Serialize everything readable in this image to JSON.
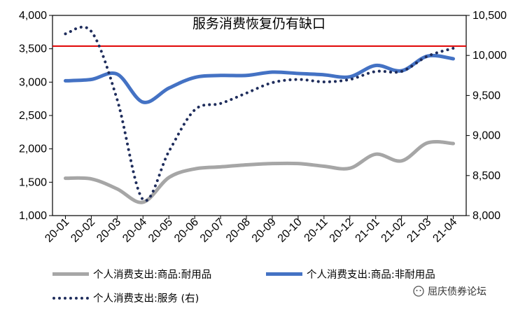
{
  "chart_data": {
    "type": "line",
    "title": "服务消费恢复仍有缺口",
    "categories": [
      "20-01",
      "20-02",
      "20-03",
      "20-04",
      "20-05",
      "20-06",
      "20-07",
      "20-08",
      "20-09",
      "20-10",
      "20-11",
      "20-12",
      "21-01",
      "21-02",
      "21-03",
      "21-04"
    ],
    "y_left": {
      "ticks": [
        "1,000",
        "1,500",
        "2,000",
        "2,500",
        "3,000",
        "3,500",
        "4,000"
      ],
      "ylim": [
        1000,
        4000
      ]
    },
    "y_right": {
      "ticks": [
        "8,000",
        "8,500",
        "9,000",
        "9,500",
        "10,000",
        "10,500"
      ],
      "ylim": [
        8000,
        10500
      ]
    },
    "reference_line": {
      "axis": "left",
      "value": 3540,
      "color": "#e00000"
    },
    "series": [
      {
        "name": "个人消费支出:商品:耐用品",
        "axis": "left",
        "style": "solid",
        "color": "#a6a6a6",
        "values": [
          1560,
          1550,
          1400,
          1200,
          1570,
          1700,
          1730,
          1760,
          1780,
          1780,
          1740,
          1710,
          1920,
          1820,
          2090,
          2080
        ]
      },
      {
        "name": "个人消费支出:商品:非耐用品",
        "axis": "left",
        "style": "solid",
        "color": "#4472c4",
        "values": [
          3020,
          3040,
          3120,
          2700,
          2910,
          3070,
          3100,
          3100,
          3150,
          3130,
          3110,
          3080,
          3250,
          3170,
          3390,
          3350
        ]
      },
      {
        "name": "个人消费支出:服务（右）",
        "axis": "right",
        "style": "dotted",
        "color": "#1f2d5c",
        "values": [
          10270,
          10300,
          9450,
          8200,
          8800,
          9320,
          9400,
          9530,
          9660,
          9700,
          9670,
          9700,
          9800,
          9800,
          9990,
          10090
        ]
      }
    ]
  },
  "legend": [
    "个人消费支出:商品:耐用品",
    "个人消费支出:商品:非耐用品",
    "个人消费支出:服务 (右)"
  ],
  "watermark": {
    "text": "屈庆债券论坛",
    "icon": "wechat-icon"
  }
}
